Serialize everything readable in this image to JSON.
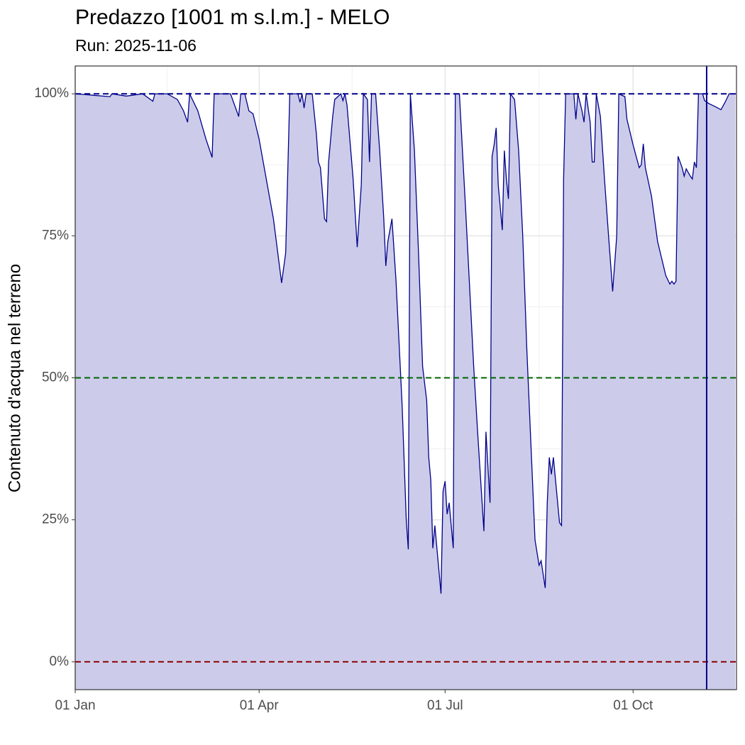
{
  "chart_data": {
    "type": "area",
    "title": "Predazzo [1001 m s.l.m.] - MELO",
    "subtitle": "Run: 2025-11-06",
    "ylabel": "Contenuto d'acqua nel terreno",
    "x": [
      0,
      17,
      18,
      25,
      33,
      38,
      39,
      45,
      50,
      53,
      55,
      56,
      60,
      64,
      67,
      68,
      76,
      78,
      80,
      81,
      83,
      85,
      87,
      90,
      93,
      97,
      101,
      103,
      105,
      109,
      110,
      111,
      112,
      113,
      116,
      118,
      119,
      120,
      122,
      123,
      124,
      126,
      127,
      130,
      131,
      132,
      133,
      136,
      138,
      140,
      141,
      143,
      144,
      145,
      147,
      149,
      151,
      152,
      153,
      154,
      155,
      157,
      160,
      162,
      163,
      164,
      166,
      168,
      170,
      172,
      173,
      174,
      175,
      176,
      179,
      180,
      181,
      182,
      183,
      185,
      186,
      188,
      191,
      193,
      195,
      197,
      200,
      201,
      203,
      204,
      205,
      206,
      207,
      209,
      210,
      211,
      212,
      213,
      215,
      217,
      219,
      221,
      224,
      225,
      227,
      228,
      230,
      231,
      232,
      233,
      234,
      237,
      238,
      239,
      240,
      244,
      245,
      246,
      248,
      249,
      250,
      252,
      253,
      254,
      255,
      257,
      259,
      261,
      263,
      265,
      266,
      269,
      270,
      273,
      276,
      277,
      278,
      279,
      282,
      285,
      289,
      291,
      292,
      293,
      294,
      295,
      297,
      298,
      299,
      301,
      302,
      303,
      304,
      305,
      307,
      308,
      310,
      314,
      316,
      318,
      320,
      323
    ],
    "values": [
      100,
      99.5,
      100,
      99.6,
      100,
      98.7,
      100,
      100,
      99,
      97,
      95,
      100,
      97,
      92,
      88.8,
      100,
      100,
      98,
      96,
      100,
      100,
      97,
      96.5,
      92,
      86,
      78,
      66.7,
      72,
      100,
      100,
      98.5,
      100,
      97.5,
      100,
      100,
      93,
      88,
      87,
      78,
      77.5,
      88,
      96,
      99,
      100,
      98.8,
      100,
      98,
      85,
      73,
      84,
      100,
      99,
      88,
      100,
      100,
      90,
      78,
      69.7,
      74,
      76,
      78,
      67,
      45,
      25,
      19.8,
      100,
      90,
      72,
      52,
      46,
      36,
      32,
      20,
      24,
      12,
      30,
      31.8,
      26,
      28,
      20,
      100,
      100,
      80,
      66,
      52,
      40,
      23,
      40.5,
      28,
      89,
      91,
      94,
      84,
      76,
      90,
      85,
      81.5,
      100,
      99,
      90,
      75,
      55,
      30,
      21.5,
      17,
      17.8,
      13,
      28,
      36,
      33,
      36,
      24.5,
      24,
      85,
      100,
      100,
      95.5,
      100,
      97,
      95,
      100,
      95,
      88,
      88,
      100,
      96,
      85,
      75,
      65.2,
      75,
      100,
      99.5,
      95.5,
      91,
      87,
      87.5,
      91.2,
      87,
      82,
      74,
      68,
      66.5,
      67,
      66.5,
      67,
      89,
      87,
      85.5,
      86.8,
      85.5,
      85,
      88,
      87,
      100,
      100,
      98.8,
      98.3,
      97.6,
      97.2,
      98.5,
      100,
      100
    ],
    "color": "#00008b",
    "fill": "#ccccea",
    "xlim": [
      0,
      323.6
    ],
    "xticks": [
      {
        "value": 0,
        "label": "01 Jan"
      },
      {
        "value": 90,
        "label": "01 Apr"
      },
      {
        "value": 181,
        "label": "01 Jul"
      },
      {
        "value": 273,
        "label": "01 Oct"
      }
    ],
    "ylim": [
      -4.9,
      104.9
    ],
    "yticks": [
      {
        "value": 0,
        "label": "0%"
      },
      {
        "value": 25,
        "label": "25%"
      },
      {
        "value": 50,
        "label": "50%"
      },
      {
        "value": 75,
        "label": "75%"
      },
      {
        "value": 100,
        "label": "100%"
      }
    ],
    "grid": true,
    "hlines": [
      {
        "value": 100,
        "color": "#00008b"
      },
      {
        "value": 50,
        "color": "#006400"
      },
      {
        "value": 0,
        "color": "#8b0000"
      }
    ],
    "vline": {
      "value": 309,
      "color": "#00008b"
    }
  }
}
